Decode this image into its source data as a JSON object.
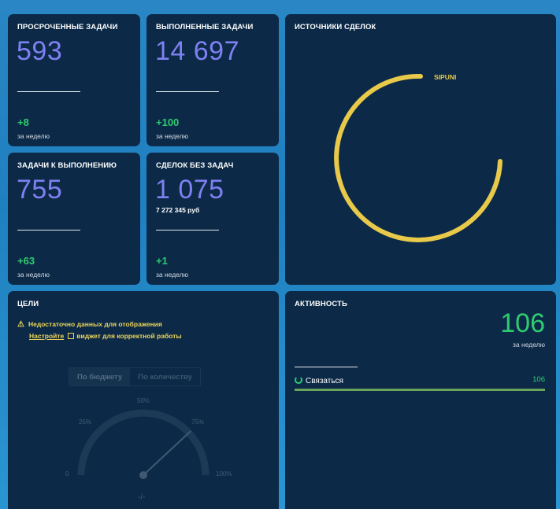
{
  "tiles": {
    "overdue": {
      "title": "ПРОСРОЧЕННЫЕ ЗАДАЧИ",
      "value": "593",
      "delta": "+8",
      "period": "за неделю"
    },
    "done": {
      "title": "ВЫПОЛНЕННЫЕ ЗАДАЧИ",
      "value": "14 697",
      "delta": "+100",
      "period": "за неделю"
    },
    "todo": {
      "title": "ЗАДАЧИ К ВЫПОЛНЕНИЮ",
      "value": "755",
      "delta": "+63",
      "period": "за неделю"
    },
    "no_tasks": {
      "title": "СДЕЛОК БЕЗ ЗАДАЧ",
      "value": "1 075",
      "amount": "7 272 345 руб",
      "delta": "+1",
      "period": "за неделю"
    }
  },
  "sources": {
    "title": "ИСТОЧНИКИ СДЕЛОК",
    "label": "SIPUNI",
    "color": "#e8c94a"
  },
  "goals": {
    "title": "ЦЕЛИ",
    "warning_line1": "Недостаточно данных для отображения",
    "link_text": "Настройте",
    "warning_line2": "виджет для корректной работы",
    "tab_budget": "По бюджету",
    "tab_count": "По количеству",
    "gauge_labels": {
      "l0": "0",
      "l25": "25%",
      "l50": "50%",
      "l75": "75%",
      "l100": "100%"
    },
    "gauge_value": "-/-"
  },
  "activity": {
    "title": "АКТИВНОСТЬ",
    "total": "106",
    "period": "за неделю",
    "rows": [
      {
        "label": "Связаться",
        "value": "106"
      }
    ]
  },
  "colors": {
    "accent_purple": "#7f80f2",
    "positive": "#2ecc71",
    "card_bg": "#0c2a47",
    "warning": "#ecd35a"
  }
}
